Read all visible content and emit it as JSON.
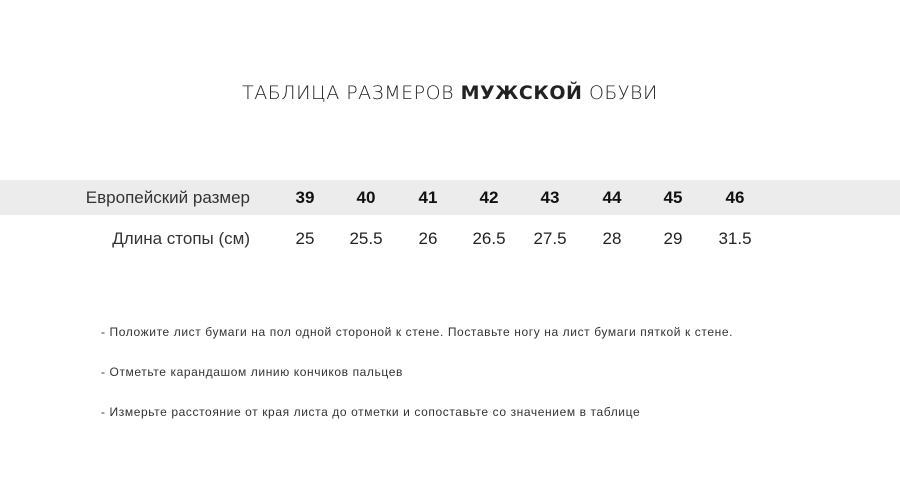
{
  "title": {
    "prefix": "ТАБЛИЦА РАЗМЕРОВ ",
    "bold": "МУЖСКОЙ",
    "suffix": " ОБУВИ"
  },
  "table": {
    "row_headers": [
      "Европейский размер",
      "Длина стопы (см)"
    ],
    "sizes": [
      "39",
      "40",
      "41",
      "42",
      "43",
      "44",
      "45",
      "46"
    ],
    "lengths": [
      "25",
      "25.5",
      "26",
      "26.5",
      "27.5",
      "28",
      "29",
      "31.5"
    ],
    "band_color": "#ececec"
  },
  "notes": [
    "- Положите лист бумаги на пол одной стороной к стене. Поставьте ногу на лист бумаги пяткой к стене.",
    "- Отметьте карандашом линию кончиков пальцев",
    "- Измерьте расстояние от края листа до отметки и сопоставьте со значением в таблице"
  ]
}
